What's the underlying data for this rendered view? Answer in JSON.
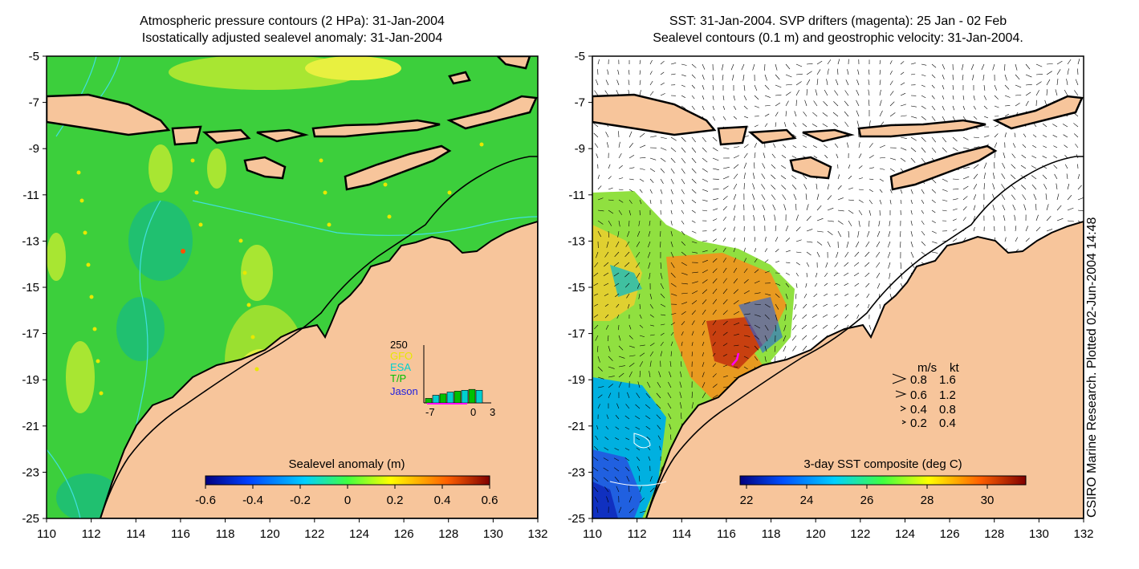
{
  "left_map": {
    "title_line1": "Atmospheric pressure contours (2 HPa): 31-Jan-2004",
    "title_line2": "Isostatically adjusted sealevel anomaly: 31-Jan-2004",
    "colorbar_label": "Sealevel anomaly (m)",
    "colorbar_ticks": [
      "-0.6",
      "-0.4",
      "-0.2",
      "0",
      "0.2",
      "0.4",
      "0.6"
    ],
    "inset": {
      "ymax_label": "250",
      "legend": [
        "GFO",
        "ESA",
        "T/P",
        "Jason"
      ],
      "legend_colors": [
        "#e8e800",
        "#00d0d0",
        "#00c000",
        "#2020e0"
      ],
      "x_ticks": [
        "-7",
        "0",
        "3"
      ],
      "bars": [
        20,
        34,
        40,
        48,
        52,
        56,
        60,
        56
      ]
    }
  },
  "right_map": {
    "title_line1": "SST: 31-Jan-2004. SVP drifters (magenta): 25 Jan - 02 Feb",
    "title_line2": "Sealevel contours (0.1 m) and geostrophic velocity: 31-Jan-2004.",
    "colorbar_label": "3-day SST composite (deg C)",
    "colorbar_ticks": [
      "22",
      "24",
      "26",
      "28",
      "30"
    ],
    "velocity_legend": {
      "header": [
        "m/s",
        "kt"
      ],
      "rows": [
        [
          "0.8",
          "1.6"
        ],
        [
          "0.6",
          "1.2"
        ],
        [
          "0.4",
          "0.8"
        ],
        [
          "0.2",
          "0.4"
        ]
      ]
    }
  },
  "axes": {
    "lat_ticks": [
      "-5",
      "-7",
      "-9",
      "-11",
      "-13",
      "-15",
      "-17",
      "-19",
      "-21",
      "-23",
      "-25"
    ],
    "lon_ticks": [
      "110",
      "112",
      "114",
      "116",
      "118",
      "120",
      "122",
      "124",
      "126",
      "128",
      "130",
      "132"
    ]
  },
  "credit": "CSIRO Marine Research. Plotted 02-Jun-2004 14:48",
  "colors": {
    "land": "#f7c59b",
    "ocean_green": "#3ccf3c",
    "contour": "#40e0e0",
    "drifter": "#ff00ff"
  }
}
